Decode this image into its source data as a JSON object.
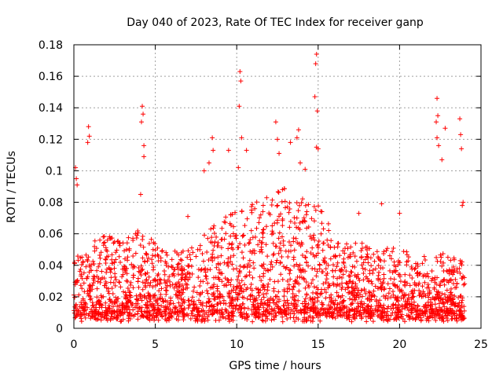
{
  "chart_data": {
    "type": "scatter",
    "title": "Day 040 of 2023, Rate Of TEC Index for receiver ganp",
    "xlabel": "GPS time / hours",
    "ylabel": "ROTI / TECUs",
    "xlim": [
      0,
      25
    ],
    "ylim": [
      0,
      0.18
    ],
    "grid": true,
    "marker": "plus",
    "marker_color": "#ff0000",
    "x_ticks": [
      "0",
      "5",
      "10",
      "15",
      "20",
      "25"
    ],
    "y_ticks": [
      "0",
      "0.02",
      "0.04",
      "0.06",
      "0.08",
      "0.1",
      "0.12",
      "0.14",
      "0.16",
      "0.18"
    ],
    "baseline_envelope": {
      "x": [
        0,
        1,
        2,
        3,
        4,
        5,
        6,
        7,
        8,
        9,
        10,
        11,
        12,
        13,
        14,
        15,
        16,
        17,
        18,
        19,
        20,
        21,
        22,
        23,
        24
      ],
      "y_max": [
        0.045,
        0.05,
        0.055,
        0.05,
        0.06,
        0.05,
        0.045,
        0.045,
        0.055,
        0.065,
        0.07,
        0.075,
        0.08,
        0.085,
        0.08,
        0.075,
        0.055,
        0.05,
        0.05,
        0.05,
        0.045,
        0.045,
        0.04,
        0.045,
        0.04
      ]
    },
    "peaks": [
      {
        "x": 0.1,
        "y": 0.102
      },
      {
        "x": 0.15,
        "y": 0.095
      },
      {
        "x": 0.2,
        "y": 0.091
      },
      {
        "x": 0.9,
        "y": 0.128
      },
      {
        "x": 0.95,
        "y": 0.122
      },
      {
        "x": 0.85,
        "y": 0.118
      },
      {
        "x": 4.2,
        "y": 0.141
      },
      {
        "x": 4.25,
        "y": 0.136
      },
      {
        "x": 4.15,
        "y": 0.131
      },
      {
        "x": 4.3,
        "y": 0.116
      },
      {
        "x": 4.3,
        "y": 0.109
      },
      {
        "x": 4.1,
        "y": 0.085
      },
      {
        "x": 8.5,
        "y": 0.121
      },
      {
        "x": 8.55,
        "y": 0.113
      },
      {
        "x": 8.3,
        "y": 0.105
      },
      {
        "x": 8.0,
        "y": 0.1
      },
      {
        "x": 9.5,
        "y": 0.113
      },
      {
        "x": 10.2,
        "y": 0.163
      },
      {
        "x": 10.25,
        "y": 0.157
      },
      {
        "x": 10.15,
        "y": 0.141
      },
      {
        "x": 10.3,
        "y": 0.121
      },
      {
        "x": 10.1,
        "y": 0.102
      },
      {
        "x": 10.6,
        "y": 0.113
      },
      {
        "x": 12.4,
        "y": 0.131
      },
      {
        "x": 12.5,
        "y": 0.12
      },
      {
        "x": 12.6,
        "y": 0.111
      },
      {
        "x": 13.3,
        "y": 0.118
      },
      {
        "x": 13.8,
        "y": 0.126
      },
      {
        "x": 13.7,
        "y": 0.121
      },
      {
        "x": 13.9,
        "y": 0.105
      },
      {
        "x": 14.2,
        "y": 0.101
      },
      {
        "x": 14.9,
        "y": 0.174
      },
      {
        "x": 14.85,
        "y": 0.168
      },
      {
        "x": 14.8,
        "y": 0.147
      },
      {
        "x": 14.95,
        "y": 0.138
      },
      {
        "x": 14.9,
        "y": 0.115
      },
      {
        "x": 15.0,
        "y": 0.114
      },
      {
        "x": 22.3,
        "y": 0.146
      },
      {
        "x": 22.35,
        "y": 0.135
      },
      {
        "x": 22.25,
        "y": 0.131
      },
      {
        "x": 22.3,
        "y": 0.121
      },
      {
        "x": 22.4,
        "y": 0.116
      },
      {
        "x": 22.6,
        "y": 0.107
      },
      {
        "x": 22.8,
        "y": 0.127
      },
      {
        "x": 23.7,
        "y": 0.133
      },
      {
        "x": 23.75,
        "y": 0.123
      },
      {
        "x": 23.8,
        "y": 0.114
      },
      {
        "x": 23.9,
        "y": 0.08
      },
      {
        "x": 23.85,
        "y": 0.078
      },
      {
        "x": 7.0,
        "y": 0.071
      },
      {
        "x": 17.5,
        "y": 0.073
      },
      {
        "x": 18.9,
        "y": 0.079
      },
      {
        "x": 20.0,
        "y": 0.073
      }
    ]
  }
}
